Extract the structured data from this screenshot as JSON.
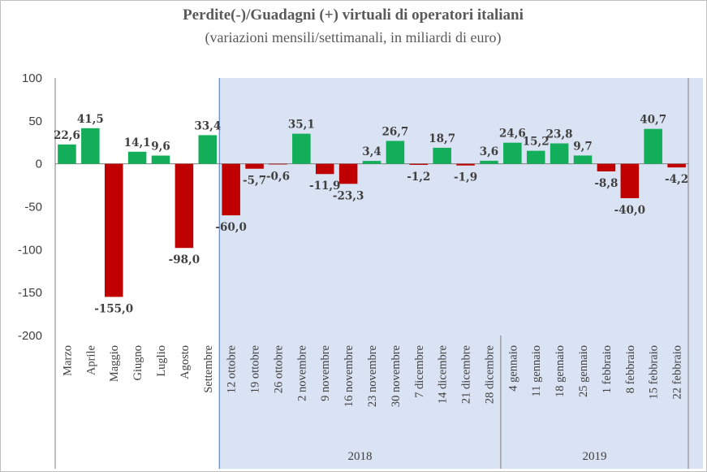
{
  "chart_data": {
    "type": "bar",
    "title": "Perdite(-)/Guadagni (+) virtuali di operatori italiani",
    "subtitle": "(variazioni mensili/settimanali, in miliardi di euro)",
    "ylim": [
      -200,
      100
    ],
    "yticks": [
      "100",
      "50",
      "0",
      "-50",
      "-100",
      "-150",
      "-200"
    ],
    "categories": [
      "Marzo",
      "Aprile",
      "Maggio",
      "Giugno",
      "Luglio",
      "Agosto",
      "Settembre",
      "12 ottobre",
      "19 ottobre",
      "26 ottobre",
      "2 novembre",
      "9 novembre",
      "16 novembre",
      "23 novembre",
      "30 novembre",
      "7 dicembre",
      "14 dicembre",
      "21 dicembre",
      "28 dicembre",
      "4 gennaio",
      "11 gennaio",
      "18 gennaio",
      "25 gennaio",
      "1 febbraio",
      "8 febbraio",
      "15 febbraio",
      "22 febbraio"
    ],
    "values": [
      22.6,
      41.5,
      -155.0,
      14.1,
      9.6,
      -98.0,
      33.4,
      -60.0,
      -5.7,
      -0.6,
      35.1,
      -11.9,
      -23.3,
      3.4,
      26.7,
      -1.2,
      18.7,
      -1.9,
      3.6,
      24.6,
      15.2,
      23.8,
      9.7,
      -8.8,
      -40.0,
      40.7,
      -4.2
    ],
    "data_labels": [
      "22,6",
      "41,5",
      "-155,0",
      "14,1",
      "9,6",
      "-98,0",
      "33,4",
      "-60,0",
      "-5,7",
      "-0,6",
      "35,1",
      "-11,9",
      "-23,3",
      "3,4",
      "26,7",
      "-1,2",
      "18,7",
      "-1,9",
      "3,6",
      "24,6",
      "15,2",
      "23,8",
      "9,7",
      "-8,8",
      "-40,0",
      "40,7",
      "-4,2"
    ],
    "groups": [
      {
        "label": "2018",
        "first": 7,
        "last": 18
      },
      {
        "label": "2019",
        "first": 19,
        "last": 26
      }
    ],
    "shaded_from_category": 7,
    "colors": {
      "positive": "#12AE59",
      "negative": "#C00000",
      "shading": "#DAE3F3",
      "shading_border": "#4472C4",
      "axis": "#7F7F7F"
    },
    "grid": false,
    "legend": "none"
  }
}
